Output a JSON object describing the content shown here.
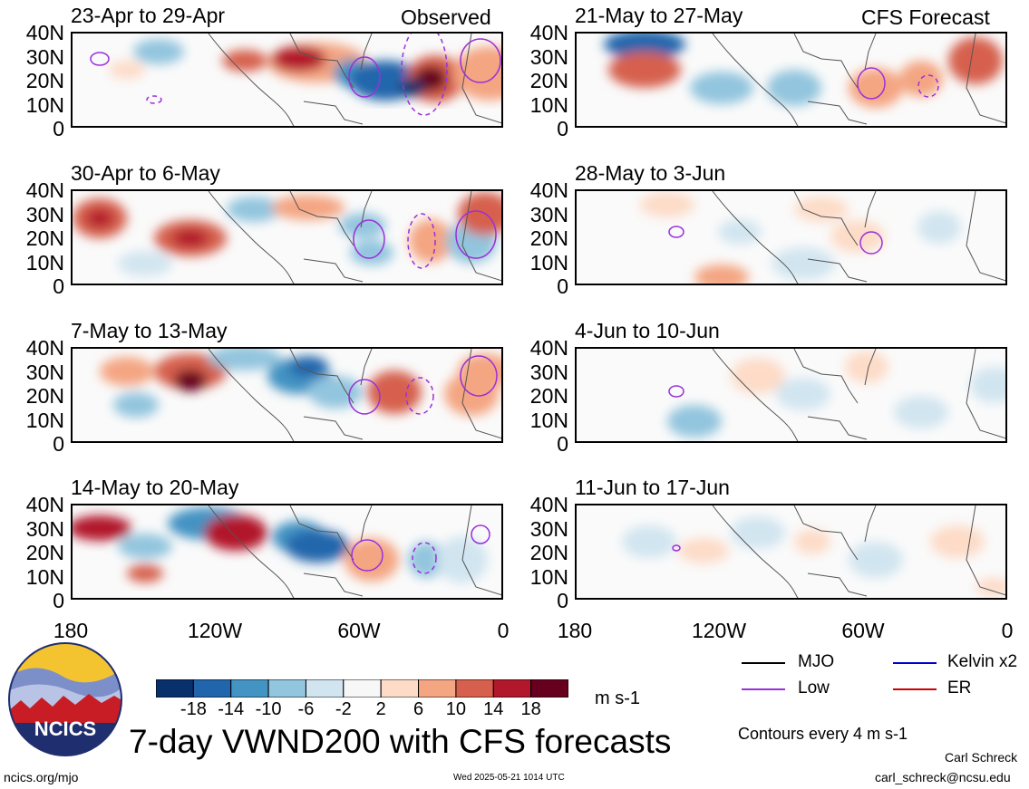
{
  "header": {
    "observed_label": "Observed",
    "forecast_label": "CFS Forecast"
  },
  "panels": {
    "observed": [
      {
        "title": "23-Apr to 29-Apr"
      },
      {
        "title": "30-Apr to 6-May"
      },
      {
        "title": "7-May to 13-May"
      },
      {
        "title": "14-May to 20-May"
      }
    ],
    "forecast": [
      {
        "title": "21-May to 27-May"
      },
      {
        "title": "28-May to 3-Jun"
      },
      {
        "title": "4-Jun to 10-Jun"
      },
      {
        "title": "11-Jun to 17-Jun"
      }
    ]
  },
  "axes": {
    "y_ticks": [
      "40N",
      "30N",
      "20N",
      "10N",
      "0"
    ],
    "x_ticks": [
      "180",
      "120W",
      "60W",
      "0"
    ]
  },
  "colorbar": {
    "tick_labels": [
      "-18",
      "-14",
      "-10",
      "-6",
      "-2",
      "2",
      "6",
      "10",
      "14",
      "18"
    ],
    "units": "m s-1",
    "colors": [
      "#08306b",
      "#2166ac",
      "#4393c3",
      "#92c5de",
      "#d1e5f0",
      "#f7f7f7",
      "#fddbc7",
      "#f4a582",
      "#d6604d",
      "#b2182b",
      "#67001f"
    ]
  },
  "legend": {
    "mjo": {
      "label": "MJO",
      "color": "#000000"
    },
    "kelvin": {
      "label": "Kelvin x2",
      "color": "#0000cc"
    },
    "low": {
      "label": "Low",
      "color": "#9b30d9"
    },
    "er": {
      "label": "ER",
      "color": "#cc0000"
    }
  },
  "title": "7-day VWND200 with CFS forecasts",
  "contour_note": "Contours every 4 m s-1",
  "footer": {
    "left": "ncics.org/mjo",
    "center": "Wed 2025-05-21 1014 UTC",
    "author": "Carl Schreck",
    "email": "carl_schreck@ncsu.edu"
  },
  "logo": {
    "text": "NCICS"
  },
  "chart_data": {
    "type": "heatmap",
    "variable": "VWND200",
    "units": "m s-1",
    "xlim": [
      "180",
      "0"
    ],
    "ylim": [
      "0",
      "40N"
    ],
    "levels": [
      -18,
      -14,
      -10,
      -6,
      -2,
      2,
      6,
      10,
      14,
      18
    ]
  }
}
